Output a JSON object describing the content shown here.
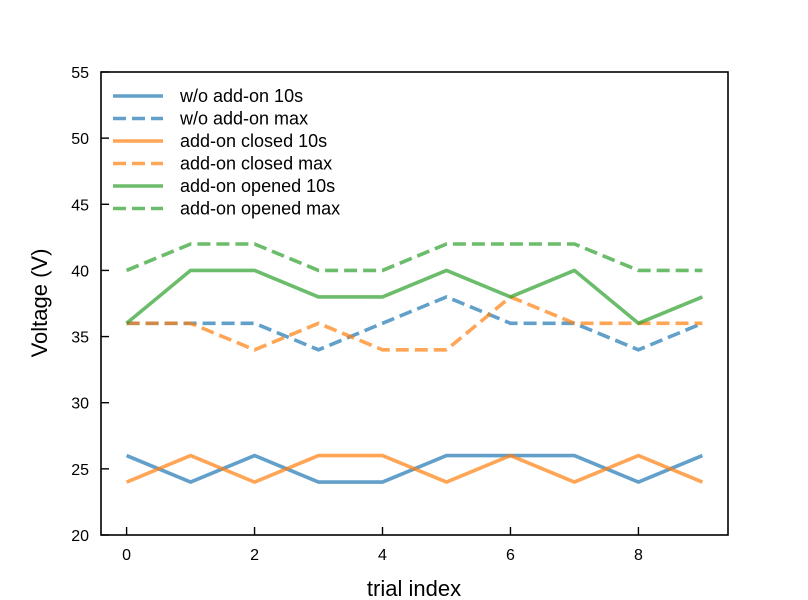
{
  "chart_data": {
    "type": "line",
    "xlabel": "trial index",
    "ylabel": "Voltage (V)",
    "xlim": [
      -0.4,
      9.4
    ],
    "ylim": [
      20,
      55
    ],
    "x_ticks": [
      0,
      2,
      4,
      6,
      8
    ],
    "y_ticks": [
      20,
      25,
      30,
      35,
      40,
      45,
      50,
      55
    ],
    "x_tick_labels": [
      "0",
      "2",
      "4",
      "6",
      "8"
    ],
    "y_tick_labels": [
      "20",
      "25",
      "30",
      "35",
      "40",
      "45",
      "50",
      "55"
    ],
    "grid": false,
    "legend_position": "upper-left",
    "x": [
      0,
      1,
      2,
      3,
      4,
      5,
      6,
      7,
      8,
      9
    ],
    "series": [
      {
        "name": "w/o add-on 10s",
        "color": "#1f77b4",
        "dash": "solid",
        "values": [
          26,
          24,
          26,
          24,
          24,
          26,
          26,
          26,
          24,
          26
        ]
      },
      {
        "name": "w/o add-on max",
        "color": "#1f77b4",
        "dash": "dashed",
        "values": [
          36,
          36,
          36,
          34,
          36,
          38,
          36,
          36,
          34,
          36
        ]
      },
      {
        "name": "add-on closed 10s",
        "color": "#ff7f0e",
        "dash": "solid",
        "values": [
          24,
          26,
          24,
          26,
          26,
          24,
          26,
          24,
          26,
          24
        ]
      },
      {
        "name": "add-on closed max",
        "color": "#ff7f0e",
        "dash": "dashed",
        "values": [
          36,
          36,
          34,
          36,
          34,
          34,
          38,
          36,
          36,
          36
        ]
      },
      {
        "name": "add-on opened 10s",
        "color": "#2ca02c",
        "dash": "solid",
        "values": [
          36,
          40,
          40,
          38,
          38,
          40,
          38,
          40,
          36,
          38
        ]
      },
      {
        "name": "add-on opened max",
        "color": "#2ca02c",
        "dash": "dashed",
        "values": [
          40,
          42,
          42,
          40,
          40,
          42,
          42,
          42,
          40,
          40
        ]
      }
    ]
  }
}
